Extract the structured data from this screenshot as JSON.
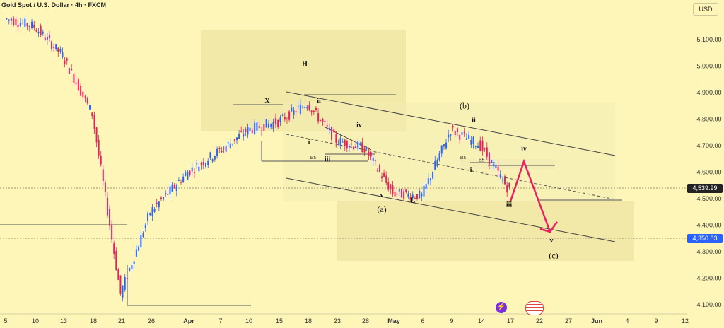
{
  "title": "Gold Spot / U.S. Dollar · 4h · FXCM",
  "currency": "USD",
  "price_tags": [
    {
      "label": "4,539.99",
      "value": 4539.99,
      "color": "#222222"
    },
    {
      "label": "4,350.83",
      "value": 4350.83,
      "color": "#2962ff"
    }
  ],
  "icons": [
    "lightning-icon",
    "us-flag-icon"
  ],
  "chart_data": {
    "type": "candlestick",
    "y_axis_ticks": [
      "5,100.00",
      "5,000.00",
      "4,900.00",
      "4,800.00",
      "4,700.00",
      "4,600.00",
      "4,500.00",
      "4,400.00",
      "4,300.00",
      "4,200.00",
      "4,100.00"
    ],
    "y_axis_values": [
      5100,
      5000,
      4900,
      4800,
      4700,
      4600,
      4500,
      4400,
      4300,
      4200,
      4100
    ],
    "ylim": [
      4080,
      5150
    ],
    "x_axis_ticks": [
      "5",
      "10",
      "13",
      "18",
      "21",
      "26",
      "Apr",
      "7",
      "10",
      "15",
      "18",
      "23",
      "28",
      "May",
      "6",
      "9",
      "14",
      "17",
      "22",
      "27",
      "Jun",
      "4",
      "9",
      "12"
    ],
    "price_path": [
      {
        "label": "5",
        "close": 5180
      },
      {
        "label": "10",
        "close": 5150
      },
      {
        "label": "13",
        "close": 5040
      },
      {
        "label": "18",
        "close": 4820
      },
      {
        "label": "21",
        "close": 4140
      },
      {
        "label": "26",
        "close": 4450
      },
      {
        "label": "Apr",
        "close": 4600
      },
      {
        "label": "7",
        "close": 4680
      },
      {
        "label": "10",
        "close": 4760
      },
      {
        "label": "15",
        "close": 4790
      },
      {
        "label": "18",
        "close": 4860
      },
      {
        "label": "23",
        "close": 4720
      },
      {
        "label": "28",
        "close": 4690
      },
      {
        "label": "May",
        "close": 4520
      },
      {
        "label": "6",
        "close": 4510
      },
      {
        "label": "9",
        "close": 4760
      },
      {
        "label": "14",
        "close": 4700
      },
      {
        "label": "17",
        "close": 4530
      }
    ],
    "wave_labels": [
      {
        "text": "H",
        "x": "18",
        "y": 5000
      },
      {
        "text": "X",
        "x": "15",
        "y": 4860
      },
      {
        "text": "ii",
        "x": "18",
        "y": 4860
      },
      {
        "text": "i",
        "x": "18",
        "y": 4705
      },
      {
        "text": "iii",
        "x": "23",
        "y": 4640
      },
      {
        "text": "iv",
        "x": "28",
        "y": 4770
      },
      {
        "text": "v",
        "x": "May",
        "y": 4505
      },
      {
        "text": "(a)",
        "x": "May",
        "y": 4450
      },
      {
        "text": "L",
        "x": "6",
        "y": 4485
      },
      {
        "text": "BS",
        "x": "15",
        "y": 4650
      },
      {
        "text": "(b)",
        "x": "14",
        "y": 4840
      },
      {
        "text": "ii",
        "x": "14",
        "y": 4790
      },
      {
        "text": "BS",
        "x": "14",
        "y": 4650
      },
      {
        "text": "BS",
        "x": "17",
        "y": 4640
      },
      {
        "text": "i",
        "x": "14",
        "y": 4600
      },
      {
        "text": "iv",
        "x": "22",
        "y": 4680
      },
      {
        "text": "iii",
        "x": "17",
        "y": 4470
      },
      {
        "text": "v",
        "x": "22",
        "y": 4335
      },
      {
        "text": "(c)",
        "x": "22",
        "y": 4275
      }
    ],
    "projection": [
      {
        "label": "17",
        "value": 4490
      },
      {
        "label": "22",
        "value": 4640
      },
      {
        "label": "27",
        "value": 4375
      }
    ],
    "grid": false,
    "legend": "none"
  }
}
